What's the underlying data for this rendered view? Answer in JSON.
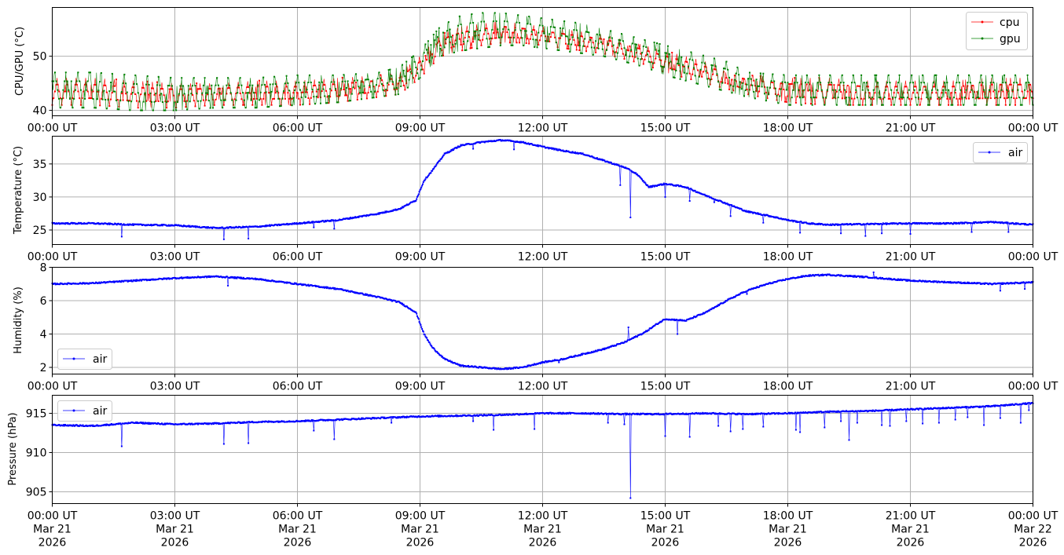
{
  "chart_data": [
    {
      "type": "line",
      "ylabel": "CPU/GPU (°C)",
      "ylim": [
        39,
        59
      ],
      "yticks": [
        40,
        50
      ],
      "xlim": [
        "2026-03-21T00:00",
        "2026-03-22T00:00"
      ],
      "xticks": [
        "00:00 UT",
        "03:00 UT",
        "06:00 UT",
        "09:00 UT",
        "12:00 UT",
        "15:00 UT",
        "18:00 UT",
        "21:00 UT",
        "00:00 UT"
      ],
      "grid": true,
      "legend_position": "top-right",
      "series": [
        {
          "name": "cpu",
          "color": "#ff0000",
          "x_hours": [
            0,
            1,
            2,
            3,
            4,
            5,
            6,
            7,
            8,
            8.5,
            9,
            9.5,
            10,
            10.5,
            11,
            11.5,
            12,
            12.5,
            13,
            13.5,
            14,
            14.5,
            15,
            15.5,
            16,
            16.5,
            17,
            18,
            19,
            20,
            21,
            22,
            23,
            24
          ],
          "low": [
            41,
            41,
            40.5,
            40.5,
            41,
            41,
            41,
            41.5,
            42.5,
            43,
            46,
            50,
            51,
            52,
            52.5,
            52.5,
            52,
            51.5,
            51,
            50.5,
            49.5,
            48.5,
            47,
            46,
            45,
            44,
            43,
            41.5,
            41,
            41,
            41,
            41,
            41,
            41
          ],
          "high": [
            46,
            46,
            45.5,
            45,
            45,
            45.5,
            45.5,
            46,
            46.5,
            47,
            50,
            54,
            55.5,
            56,
            56.5,
            56,
            55.5,
            55,
            54.5,
            54,
            53,
            52,
            51,
            50,
            49,
            48,
            46.5,
            46,
            46,
            45.5,
            45.5,
            45.5,
            46,
            46
          ]
        },
        {
          "name": "gpu",
          "color": "#008000",
          "x_hours": [
            0,
            1,
            2,
            3,
            4,
            5,
            6,
            7,
            8,
            8.5,
            9,
            9.5,
            10,
            10.5,
            11,
            11.5,
            12,
            12.5,
            13,
            13.5,
            14,
            14.5,
            15,
            15.5,
            16,
            16.5,
            17,
            18,
            19,
            20,
            21,
            22,
            23,
            24
          ],
          "low": [
            40.5,
            40.5,
            40,
            40,
            40.5,
            40.5,
            41,
            41.5,
            42.5,
            43,
            46,
            50,
            51,
            51.5,
            52,
            52,
            51.5,
            51,
            50.5,
            50,
            49,
            48,
            46.5,
            45.5,
            44.5,
            43.5,
            42.5,
            41,
            41,
            41,
            41,
            41,
            41,
            41
          ],
          "high": [
            47,
            47,
            46.5,
            46,
            46,
            46,
            46.5,
            46.5,
            47,
            48,
            51,
            55.5,
            57.5,
            58,
            58,
            57.5,
            57,
            56.5,
            56,
            55,
            54,
            53,
            52,
            51,
            50,
            49,
            47,
            46.5,
            46.5,
            46.5,
            46.5,
            46.5,
            46.5,
            46.5
          ]
        }
      ]
    },
    {
      "type": "line",
      "ylabel": "Temperature (°C)",
      "ylim": [
        22.8,
        39.2
      ],
      "yticks": [
        25,
        30,
        35
      ],
      "xlim": [
        "2026-03-21T00:00",
        "2026-03-22T00:00"
      ],
      "xticks": [
        "00:00 UT",
        "03:00 UT",
        "06:00 UT",
        "09:00 UT",
        "12:00 UT",
        "15:00 UT",
        "18:00 UT",
        "21:00 UT",
        "00:00 UT"
      ],
      "grid": true,
      "legend_position": "top-right",
      "series": [
        {
          "name": "air",
          "color": "#0000ff",
          "x_hours": [
            0,
            1,
            2,
            3,
            4,
            5,
            6,
            7,
            8,
            8.5,
            8.9,
            9.1,
            9.3,
            9.6,
            10,
            10.5,
            11,
            11.5,
            12,
            12.5,
            13,
            13.5,
            14,
            14.3,
            14.6,
            15,
            15.5,
            16,
            16.5,
            17,
            17.5,
            18,
            18.5,
            19,
            20,
            21,
            22,
            23,
            24
          ],
          "values": [
            26,
            26,
            25.8,
            25.7,
            25.3,
            25.5,
            26,
            26.5,
            27.5,
            28.2,
            29.5,
            32.5,
            34,
            36.5,
            37.8,
            38.3,
            38.6,
            38.3,
            37.6,
            37,
            36.5,
            35.5,
            34.5,
            33.5,
            31.5,
            32,
            31.5,
            30.2,
            29,
            27.8,
            27.2,
            26.5,
            26,
            25.8,
            25.9,
            26,
            26,
            26.2,
            25.8
          ],
          "dips": [
            [
              1.7,
              24.0
            ],
            [
              4.2,
              23.6
            ],
            [
              4.8,
              23.7
            ],
            [
              6.4,
              25.4
            ],
            [
              6.9,
              25.2
            ],
            [
              10.3,
              37.3
            ],
            [
              11.3,
              37.2
            ],
            [
              14.15,
              26.9
            ],
            [
              13.9,
              31.8
            ],
            [
              15.0,
              30.0
            ],
            [
              15.6,
              29.4
            ],
            [
              16.2,
              29.2
            ],
            [
              16.6,
              27.1
            ],
            [
              17.4,
              26.1
            ],
            [
              18.3,
              24.6
            ],
            [
              19.3,
              24.5
            ],
            [
              19.9,
              24.1
            ],
            [
              20.3,
              24.5
            ],
            [
              21.0,
              24.4
            ],
            [
              22.5,
              24.7
            ],
            [
              23.4,
              24.7
            ]
          ]
        }
      ]
    },
    {
      "type": "line",
      "ylabel": "Humidity (%)",
      "ylim": [
        1.6,
        8.0
      ],
      "yticks": [
        2,
        4,
        6,
        8
      ],
      "xlim": [
        "2026-03-21T00:00",
        "2026-03-22T00:00"
      ],
      "xticks": [
        "00:00 UT",
        "03:00 UT",
        "06:00 UT",
        "09:00 UT",
        "12:00 UT",
        "15:00 UT",
        "18:00 UT",
        "21:00 UT",
        "00:00 UT"
      ],
      "grid": true,
      "legend_position": "bottom-left",
      "series": [
        {
          "name": "air",
          "color": "#0000ff",
          "x_hours": [
            0,
            1,
            2,
            3,
            4,
            5,
            6,
            7,
            8,
            8.5,
            8.9,
            9.1,
            9.3,
            9.6,
            10,
            10.5,
            11,
            11.5,
            12,
            12.5,
            13,
            13.5,
            14,
            14.5,
            14.8,
            15,
            15.5,
            16,
            16.5,
            17,
            17.5,
            18,
            18.5,
            19,
            20,
            21,
            22,
            23,
            24
          ],
          "values": [
            7,
            7.05,
            7.2,
            7.35,
            7.45,
            7.3,
            7.0,
            6.7,
            6.2,
            5.9,
            5.3,
            4.0,
            3.2,
            2.5,
            2.1,
            2.0,
            1.9,
            2.0,
            2.3,
            2.5,
            2.8,
            3.1,
            3.5,
            4.1,
            4.6,
            4.9,
            4.8,
            5.3,
            6.0,
            6.6,
            7.0,
            7.3,
            7.5,
            7.55,
            7.4,
            7.2,
            7.1,
            7.0,
            7.1
          ],
          "dips": [
            [
              4.3,
              6.9
            ],
            [
              14.1,
              4.4
            ],
            [
              15.3,
              4.0
            ],
            [
              12.4,
              2.3
            ],
            [
              17.0,
              6.4
            ],
            [
              20.1,
              7.7
            ],
            [
              23.2,
              6.6
            ],
            [
              23.8,
              6.7
            ]
          ]
        }
      ]
    },
    {
      "type": "line",
      "ylabel": "Pressure (hPa)",
      "ylim": [
        903.5,
        917.3
      ],
      "yticks": [
        905,
        910,
        915
      ],
      "xlim": [
        "2026-03-21T00:00",
        "2026-03-22T00:00"
      ],
      "xticks": [
        "00:00 UT",
        "03:00 UT",
        "06:00 UT",
        "09:00 UT",
        "12:00 UT",
        "15:00 UT",
        "18:00 UT",
        "21:00 UT",
        "00:00 UT"
      ],
      "xticks_date": [
        "Mar 21",
        "Mar 21",
        "Mar 21",
        "Mar 21",
        "Mar 21",
        "Mar 21",
        "Mar 21",
        "Mar 21",
        "Mar 22"
      ],
      "xticks_year": [
        "2026",
        "2026",
        "2026",
        "2026",
        "2026",
        "2026",
        "2026",
        "2026",
        "2026"
      ],
      "grid": true,
      "legend_position": "top-left",
      "series": [
        {
          "name": "air",
          "color": "#0000ff",
          "x_hours": [
            0,
            1,
            2,
            3,
            4,
            5,
            6,
            7,
            8,
            9,
            10,
            11,
            12,
            13,
            14,
            15,
            16,
            17,
            18,
            19,
            20,
            21,
            22,
            23,
            24
          ],
          "values": [
            913.5,
            913.4,
            913.8,
            913.6,
            913.7,
            913.9,
            914.0,
            914.2,
            914.4,
            914.6,
            914.7,
            914.8,
            915.0,
            915.0,
            914.9,
            914.9,
            915.0,
            914.9,
            915.0,
            915.2,
            915.3,
            915.5,
            915.7,
            915.9,
            916.3
          ],
          "dips": [
            [
              1.7,
              910.8
            ],
            [
              4.2,
              911.1
            ],
            [
              4.8,
              911.2
            ],
            [
              6.4,
              912.8
            ],
            [
              6.9,
              911.7
            ],
            [
              8.3,
              913.8
            ],
            [
              10.3,
              914.0
            ],
            [
              10.8,
              912.9
            ],
            [
              11.8,
              913.0
            ],
            [
              13.6,
              913.8
            ],
            [
              14.15,
              904.2
            ],
            [
              14.0,
              913.6
            ],
            [
              15.0,
              912.1
            ],
            [
              15.6,
              912.0
            ],
            [
              16.3,
              913.4
            ],
            [
              16.6,
              912.7
            ],
            [
              16.9,
              913.0
            ],
            [
              17.4,
              913.3
            ],
            [
              18.2,
              912.9
            ],
            [
              18.3,
              912.6
            ],
            [
              18.9,
              913.2
            ],
            [
              19.3,
              914.0
            ],
            [
              19.5,
              911.6
            ],
            [
              19.7,
              913.8
            ],
            [
              20.3,
              913.5
            ],
            [
              20.5,
              913.4
            ],
            [
              20.9,
              914.0
            ],
            [
              21.3,
              913.7
            ],
            [
              21.7,
              913.8
            ],
            [
              22.1,
              914.2
            ],
            [
              22.4,
              914.5
            ],
            [
              22.8,
              913.5
            ],
            [
              23.2,
              914.4
            ],
            [
              23.7,
              913.8
            ],
            [
              23.9,
              915.4
            ]
          ]
        }
      ]
    }
  ]
}
